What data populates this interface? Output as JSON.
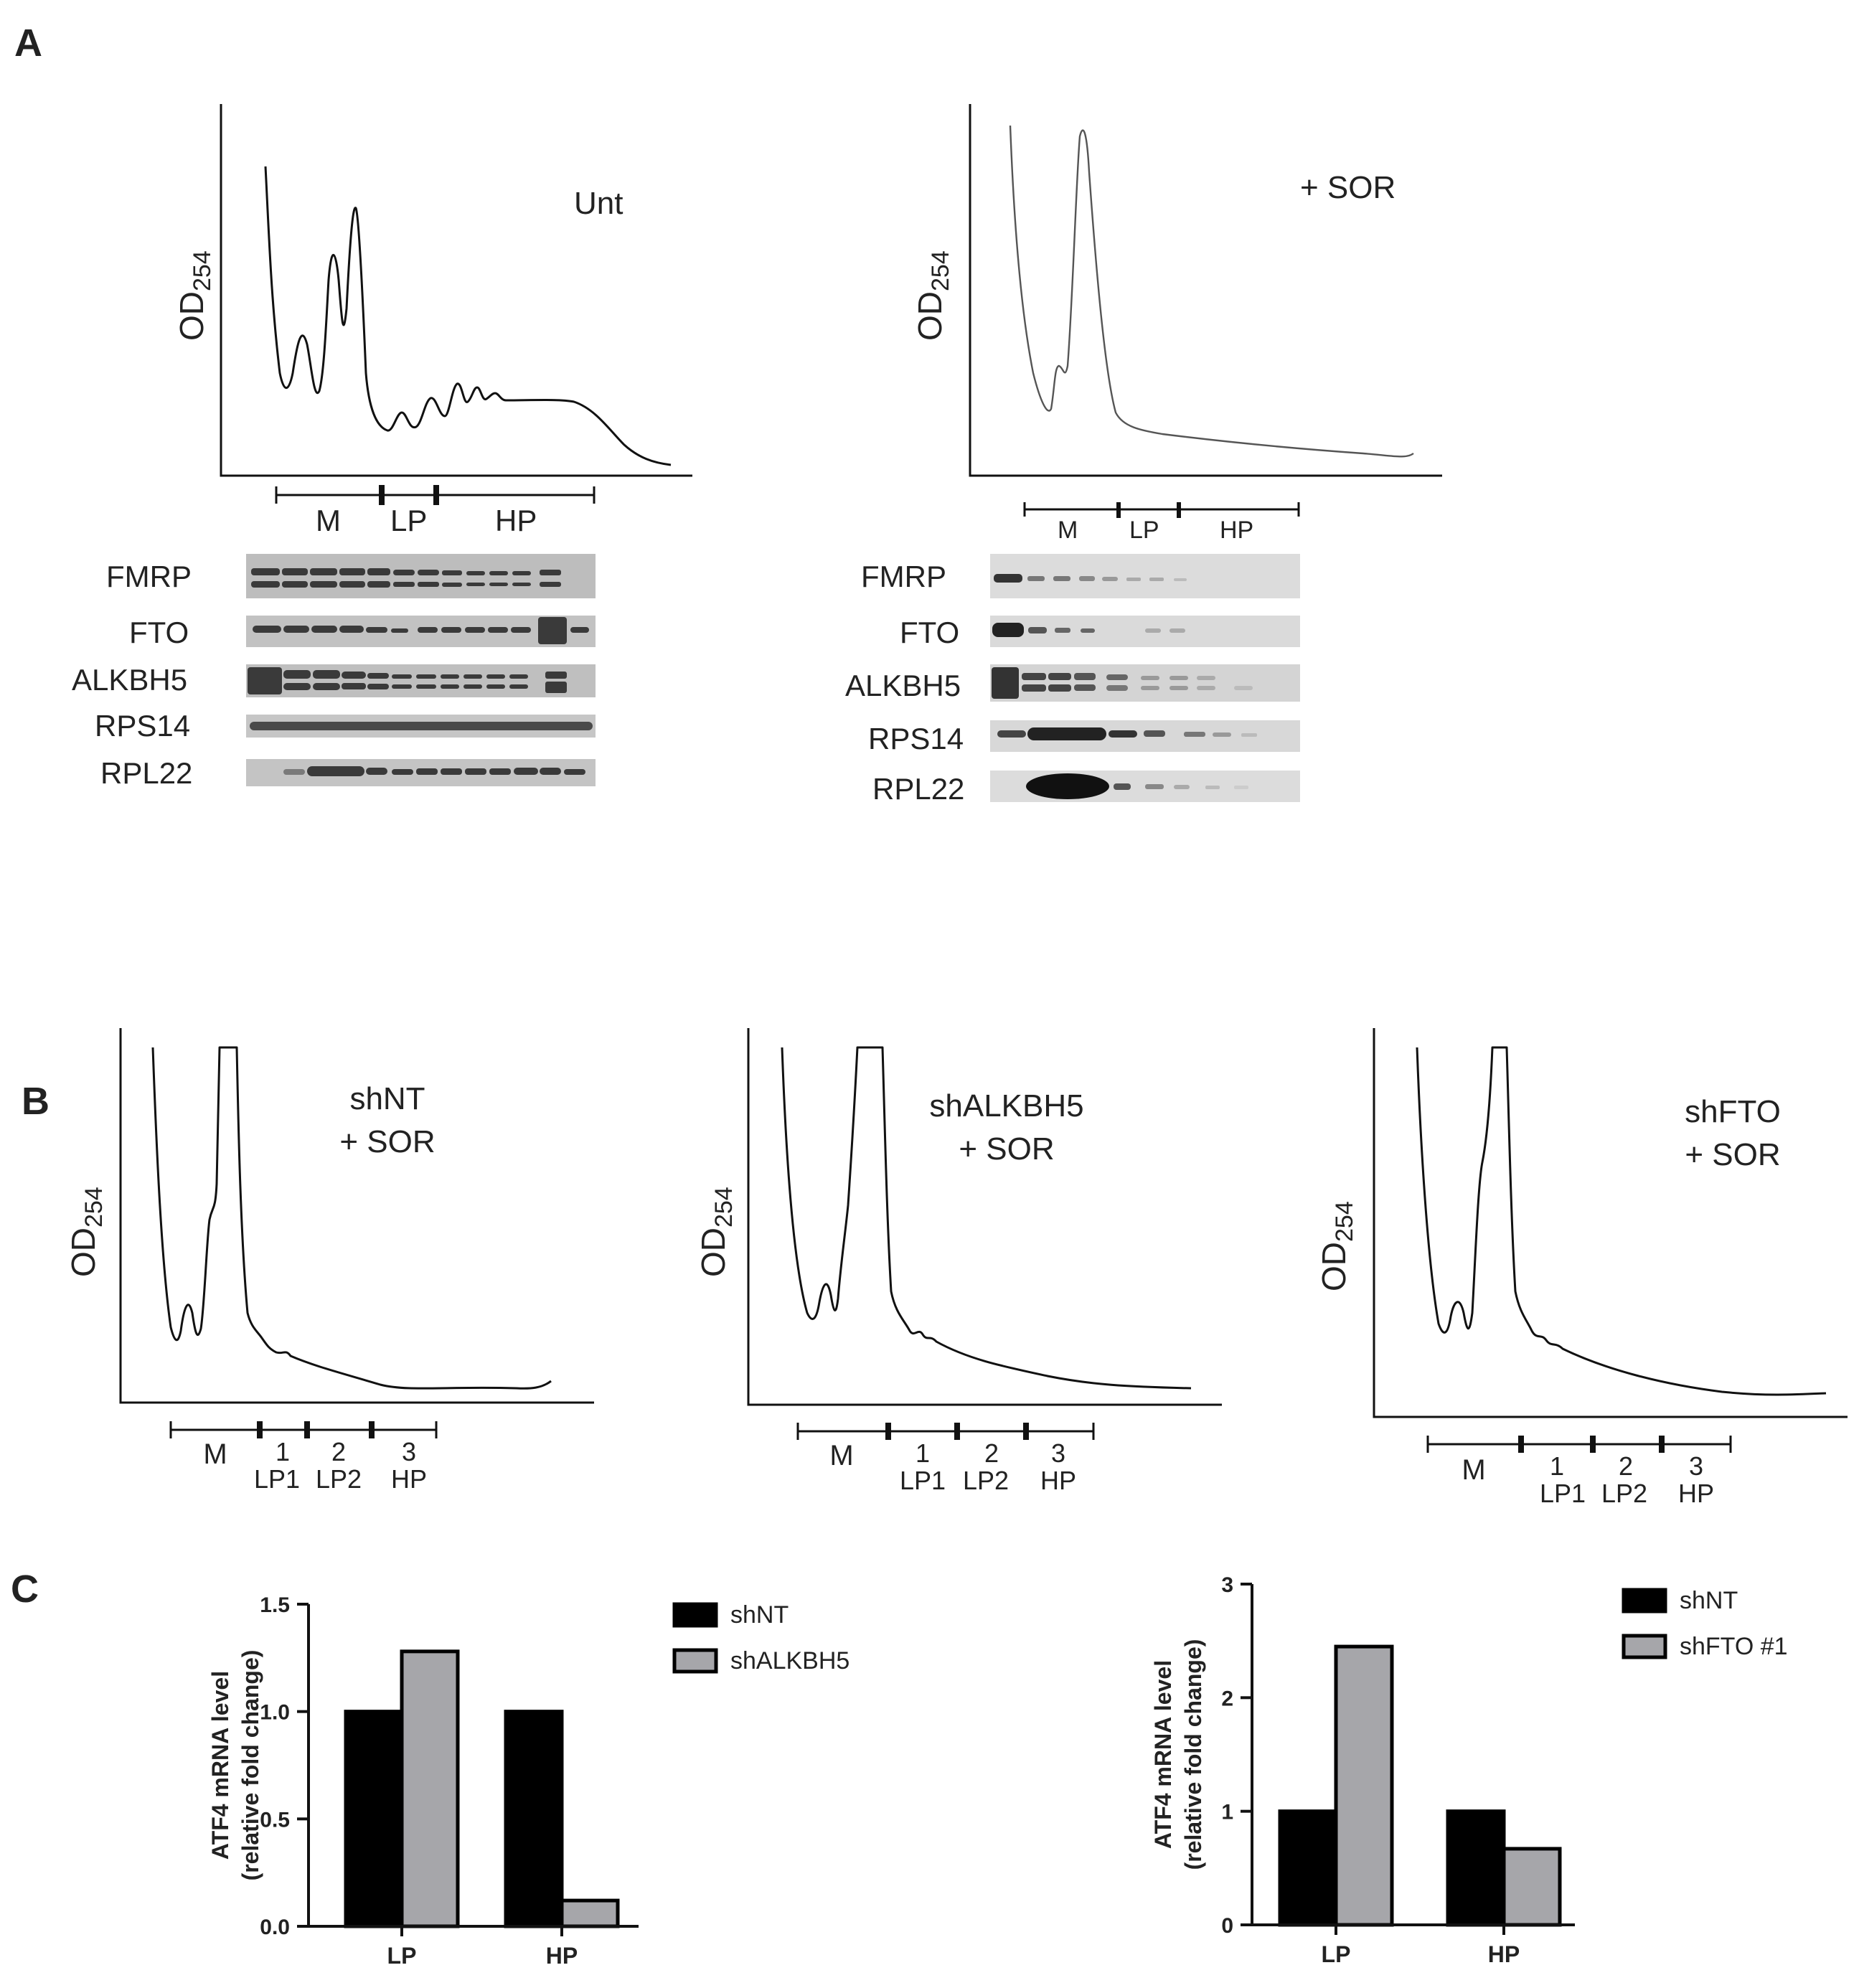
{
  "panels": {
    "A": {
      "letter": "A",
      "left": {
        "condition": "Unt",
        "ylabel": "OD",
        "ylabel_sub": "254",
        "fractions": [
          "M",
          "LP",
          "HP"
        ],
        "blots": [
          "FMRP",
          "FTO",
          "ALKBH5",
          "RPS14",
          "RPL22"
        ]
      },
      "right": {
        "condition": "+ SOR",
        "ylabel": "OD",
        "ylabel_sub": "254",
        "fractions": [
          "M",
          "LP",
          "HP"
        ],
        "blots": [
          "FMRP",
          "FTO",
          "ALKBH5",
          "RPS14",
          "RPL22"
        ]
      }
    },
    "B": {
      "letter": "B",
      "profiles": [
        {
          "title": [
            "shNT",
            "+ SOR"
          ],
          "ylabel": "OD",
          "ylabel_sub": "254",
          "fractions": [
            "M",
            "1",
            "2",
            "3"
          ],
          "fraction_names": [
            "LP1",
            "LP2",
            "HP"
          ]
        },
        {
          "title": [
            "shALKBH5",
            "+ SOR"
          ],
          "ylabel": "OD",
          "ylabel_sub": "254",
          "fractions": [
            "M",
            "1",
            "2",
            "3"
          ],
          "fraction_names": [
            "LP1",
            "LP2",
            "HP"
          ]
        },
        {
          "title": [
            "shFTO",
            "+ SOR"
          ],
          "ylabel": "OD",
          "ylabel_sub": "254",
          "fractions": [
            "M",
            "1",
            "2",
            "3"
          ],
          "fraction_names": [
            "LP1",
            "LP2",
            "HP"
          ]
        }
      ]
    },
    "C": {
      "letter": "C"
    }
  },
  "chart_data": [
    {
      "type": "bar",
      "categories": [
        "LP",
        "HP"
      ],
      "series": [
        {
          "name": "shNT",
          "values": [
            1.0,
            1.0
          ],
          "color": "#000000"
        },
        {
          "name": "shALKBH5",
          "values": [
            1.28,
            0.12
          ],
          "color": "#a6a6aa"
        }
      ],
      "ylabel_lines": [
        "ATF4 mRNA level",
        "(relative fold change)"
      ],
      "ylim": [
        0,
        1.5
      ],
      "yticks": [
        "0.0",
        "0.5",
        "1.0",
        "1.5"
      ],
      "ytick_values": [
        0,
        0.5,
        1.0,
        1.5
      ],
      "legend": "top-right"
    },
    {
      "type": "bar",
      "categories": [
        "LP",
        "HP"
      ],
      "series": [
        {
          "name": "shNT",
          "values": [
            1.0,
            1.0
          ],
          "color": "#000000"
        },
        {
          "name": "shFTO #1",
          "values": [
            2.45,
            0.67
          ],
          "color": "#a6a6aa"
        }
      ],
      "ylabel_lines": [
        "ATF4 mRNA level",
        "(relative fold change)"
      ],
      "ylim": [
        0,
        3
      ],
      "yticks": [
        "0",
        "1",
        "2",
        "3"
      ],
      "ytick_values": [
        0,
        1,
        2,
        3
      ],
      "legend": "top-right"
    }
  ]
}
